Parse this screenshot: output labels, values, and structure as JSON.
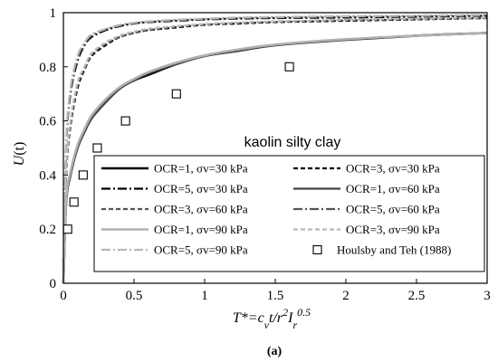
{
  "chart_data": {
    "type": "line",
    "title": "",
    "panel_label": "(a)",
    "annotation": "kaolin silty clay",
    "xlabel": "T*=cvt/r²Ir^0.5",
    "ylabel": "U(t)",
    "xlim": [
      0,
      3
    ],
    "ylim": [
      0,
      1
    ],
    "xticks": [
      "0",
      "0.5",
      "1",
      "1.5",
      "2",
      "2.5",
      "3"
    ],
    "yticks": [
      "0",
      "0.2",
      "0.4",
      "0.6",
      "0.8",
      "1"
    ],
    "x": [
      0,
      0.02,
      0.05,
      0.1,
      0.15,
      0.2,
      0.3,
      0.4,
      0.5,
      0.6,
      0.8,
      1.0,
      1.25,
      1.5,
      2.0,
      2.5,
      3.0
    ],
    "series": [
      {
        "name": "OCR=1, σv=30 kPa",
        "color": "#000000",
        "width": 2.6,
        "dash": "",
        "values": [
          0,
          0.3,
          0.4,
          0.5,
          0.56,
          0.61,
          0.67,
          0.72,
          0.75,
          0.77,
          0.81,
          0.84,
          0.86,
          0.88,
          0.9,
          0.915,
          0.925
        ]
      },
      {
        "name": "OCR=3, σv=30 kPa",
        "color": "#000000",
        "width": 2.2,
        "dash": "5,3",
        "values": [
          0,
          0.4,
          0.58,
          0.72,
          0.79,
          0.84,
          0.88,
          0.91,
          0.925,
          0.935,
          0.945,
          0.955,
          0.96,
          0.965,
          0.97,
          0.975,
          0.98
        ]
      },
      {
        "name": "OCR=5, σv=30 kPa",
        "color": "#000000",
        "width": 2.2,
        "dash": "10,3,2,3",
        "values": [
          0,
          0.5,
          0.7,
          0.82,
          0.88,
          0.91,
          0.935,
          0.95,
          0.96,
          0.965,
          0.97,
          0.975,
          0.978,
          0.98,
          0.982,
          0.985,
          0.988
        ]
      },
      {
        "name": "OCR=1, σv=60 kPa",
        "color": "#444444",
        "width": 2.2,
        "dash": "",
        "values": [
          0,
          0.3,
          0.4,
          0.5,
          0.56,
          0.61,
          0.67,
          0.72,
          0.75,
          0.775,
          0.81,
          0.84,
          0.86,
          0.88,
          0.9,
          0.915,
          0.925
        ]
      },
      {
        "name": "OCR=3, σv=60 kPa",
        "color": "#555555",
        "width": 2.2,
        "dash": "5,3",
        "values": [
          0,
          0.41,
          0.59,
          0.73,
          0.795,
          0.845,
          0.885,
          0.91,
          0.925,
          0.935,
          0.948,
          0.956,
          0.962,
          0.966,
          0.972,
          0.976,
          0.98
        ]
      },
      {
        "name": "OCR=5, σv=60 kPa",
        "color": "#555555",
        "width": 2.2,
        "dash": "10,3,2,3",
        "values": [
          0,
          0.51,
          0.71,
          0.83,
          0.885,
          0.915,
          0.938,
          0.952,
          0.961,
          0.966,
          0.972,
          0.976,
          0.98,
          0.982,
          0.985,
          0.987,
          0.99
        ]
      },
      {
        "name": "OCR=1, σv=90 kPa",
        "color": "#b0b0b0",
        "width": 2.6,
        "dash": "",
        "values": [
          0,
          0.31,
          0.41,
          0.51,
          0.57,
          0.62,
          0.68,
          0.725,
          0.755,
          0.78,
          0.815,
          0.842,
          0.865,
          0.882,
          0.902,
          0.915,
          0.925
        ]
      },
      {
        "name": "OCR=3, σv=90 kPa",
        "color": "#b8b8b8",
        "width": 2.2,
        "dash": "5,3",
        "values": [
          0,
          0.42,
          0.6,
          0.74,
          0.8,
          0.85,
          0.89,
          0.915,
          0.93,
          0.94,
          0.95,
          0.958,
          0.964,
          0.968,
          0.974,
          0.978,
          0.982
        ]
      },
      {
        "name": "OCR=5, σv=90 kPa",
        "color": "#b8b8b8",
        "width": 2.2,
        "dash": "10,3,2,3",
        "values": [
          0,
          0.52,
          0.72,
          0.84,
          0.89,
          0.92,
          0.94,
          0.955,
          0.963,
          0.968,
          0.974,
          0.978,
          0.982,
          0.984,
          0.987,
          0.989,
          0.992
        ]
      }
    ],
    "reference_points": {
      "name": "Houlsby and Teh (1988)",
      "x": [
        0.03,
        0.075,
        0.14,
        0.24,
        0.44,
        0.8,
        1.6
      ],
      "y": [
        0.2,
        0.3,
        0.4,
        0.5,
        0.6,
        0.7,
        0.8
      ]
    },
    "legend_position": "lower-right",
    "grid": false
  }
}
